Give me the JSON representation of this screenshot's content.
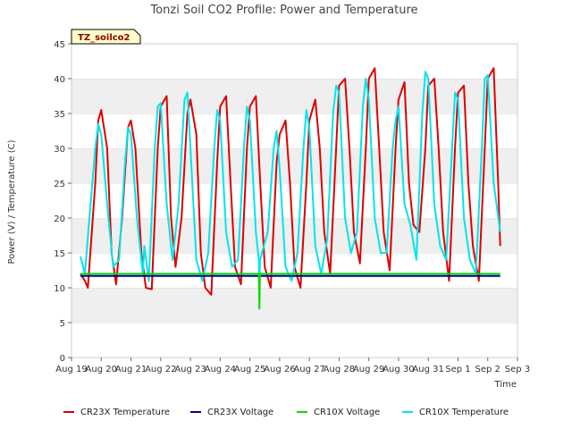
{
  "chart_data": {
    "type": "line",
    "title": "Tonzi Soil CO2 Profile: Power and Temperature",
    "xlabel": "Time",
    "ylabel": "Power (V) / Temperature (C)",
    "ylim": [
      0,
      45
    ],
    "yticks": [
      0,
      5,
      10,
      15,
      20,
      25,
      30,
      35,
      40,
      45
    ],
    "xlim": [
      0,
      15
    ],
    "xtick_labels": [
      "Aug 19",
      "Aug 20",
      "Aug 21",
      "Aug 22",
      "Aug 23",
      "Aug 24",
      "Aug 25",
      "Aug 26",
      "Aug 27",
      "Aug 28",
      "Aug 29",
      "Aug 30",
      "Aug 31",
      "Sep 1",
      "Sep 2",
      "Sep 3"
    ],
    "grid": "horizontal bands",
    "legend_position": "bottom",
    "site_tag": "TZ_soilco2",
    "series": [
      {
        "name": "CR23X Temperature",
        "color": "#dd0000",
        "x": [
          0.3,
          0.45,
          0.55,
          0.8,
          0.9,
          1.0,
          1.2,
          1.35,
          1.5,
          1.7,
          1.9,
          2.0,
          2.15,
          2.35,
          2.5,
          2.7,
          2.9,
          3.0,
          3.2,
          3.35,
          3.5,
          3.7,
          3.9,
          4.0,
          4.2,
          4.35,
          4.5,
          4.7,
          4.9,
          5.0,
          5.2,
          5.35,
          5.5,
          5.7,
          5.9,
          6.0,
          6.2,
          6.35,
          6.5,
          6.7,
          6.9,
          7.0,
          7.2,
          7.35,
          7.5,
          7.7,
          7.9,
          8.0,
          8.2,
          8.35,
          8.5,
          8.7,
          8.9,
          9.0,
          9.2,
          9.35,
          9.5,
          9.7,
          9.9,
          10.0,
          10.2,
          10.35,
          10.5,
          10.7,
          10.9,
          11.0,
          11.2,
          11.35,
          11.5,
          11.7,
          11.9,
          12.0,
          12.2,
          12.35,
          12.5,
          12.7,
          12.9,
          13.0,
          13.2,
          13.35,
          13.5,
          13.7,
          13.9,
          14.0,
          14.2,
          14.35
        ],
        "y": [
          12.0,
          11.0,
          10.0,
          25.0,
          34.0,
          35.5,
          30.0,
          15.0,
          10.5,
          20.0,
          33.0,
          34.0,
          30.0,
          15.0,
          10.0,
          9.8,
          30.0,
          36.0,
          37.5,
          20.0,
          13.0,
          20.0,
          35.0,
          37.0,
          32.0,
          15.0,
          10.0,
          9.0,
          28.0,
          36.0,
          37.5,
          25.0,
          13.0,
          10.5,
          30.0,
          36.0,
          37.5,
          25.0,
          13.0,
          10.0,
          28.0,
          32.0,
          34.0,
          25.0,
          13.0,
          10.0,
          25.0,
          34.0,
          37.0,
          30.0,
          18.0,
          12.0,
          30.0,
          39.0,
          40.0,
          30.0,
          18.0,
          13.5,
          30.0,
          40.0,
          41.5,
          30.0,
          18.0,
          12.5,
          30.0,
          37.0,
          39.5,
          25.0,
          19.0,
          18.0,
          30.0,
          39.0,
          40.0,
          30.0,
          18.0,
          11.0,
          30.0,
          38.0,
          39.0,
          25.0,
          16.0,
          11.0,
          30.0,
          40.0,
          41.5,
          25.0
        ],
        "end": [
          14.42,
          16.0
        ]
      },
      {
        "name": "CR23X Voltage",
        "color": "#000099",
        "x": [
          0.3,
          14.42
        ],
        "y": [
          11.7,
          11.7
        ]
      },
      {
        "name": "CR10X Voltage",
        "color": "#00dd00",
        "x": [
          0.3,
          6.3,
          6.32,
          6.34,
          6.36,
          14.42
        ],
        "y": [
          12.0,
          12.0,
          7.0,
          12.0,
          12.0,
          12.0
        ]
      },
      {
        "name": "CR10X Temperature",
        "color": "#00e5ee",
        "x": [
          0.3,
          0.45,
          0.6,
          0.8,
          0.9,
          1.0,
          1.2,
          1.4,
          1.6,
          1.8,
          1.9,
          2.0,
          2.2,
          2.4,
          2.45,
          2.6,
          2.8,
          2.9,
          3.0,
          3.2,
          3.4,
          3.6,
          3.8,
          3.9,
          4.0,
          4.2,
          4.4,
          4.6,
          4.8,
          4.9,
          5.0,
          5.2,
          5.4,
          5.6,
          5.8,
          5.9,
          6.0,
          6.2,
          6.3,
          6.32,
          6.34,
          6.6,
          6.8,
          6.9,
          7.0,
          7.2,
          7.4,
          7.6,
          7.8,
          7.9,
          8.0,
          8.2,
          8.4,
          8.6,
          8.8,
          8.9,
          9.0,
          9.2,
          9.4,
          9.6,
          9.8,
          9.9,
          10.0,
          10.2,
          10.4,
          10.6,
          10.8,
          10.9,
          11.0,
          11.2,
          11.4,
          11.6,
          11.8,
          11.9,
          12.0,
          12.2,
          12.4,
          12.6,
          12.8,
          12.9,
          13.0,
          13.2,
          13.4,
          13.6,
          13.8,
          13.9,
          14.0,
          14.2,
          14.42
        ],
        "y": [
          14.5,
          12.0,
          20.0,
          30.0,
          33.5,
          32.0,
          22.0,
          13.0,
          14.0,
          28.0,
          33.0,
          32.0,
          20.0,
          12.0,
          16.0,
          11.0,
          30.0,
          36.0,
          36.5,
          22.0,
          14.0,
          22.0,
          37.0,
          38.0,
          30.0,
          14.0,
          11.0,
          15.0,
          30.0,
          35.5,
          34.0,
          18.0,
          13.0,
          14.0,
          30.0,
          36.0,
          34.0,
          18.0,
          14.0,
          10.0,
          14.0,
          18.0,
          30.0,
          32.5,
          27.0,
          13.0,
          11.0,
          15.0,
          30.0,
          35.5,
          33.0,
          16.0,
          12.0,
          17.0,
          35.0,
          39.0,
          38.0,
          20.0,
          15.0,
          18.0,
          36.0,
          40.0,
          37.0,
          20.0,
          15.0,
          15.0,
          30.0,
          34.0,
          36.0,
          22.0,
          19.0,
          14.0,
          35.0,
          41.0,
          40.0,
          22.0,
          16.0,
          14.0,
          30.0,
          38.0,
          37.0,
          20.0,
          14.0,
          12.0,
          30.0,
          40.0,
          40.5,
          25.0,
          18.0
        ]
      }
    ]
  }
}
